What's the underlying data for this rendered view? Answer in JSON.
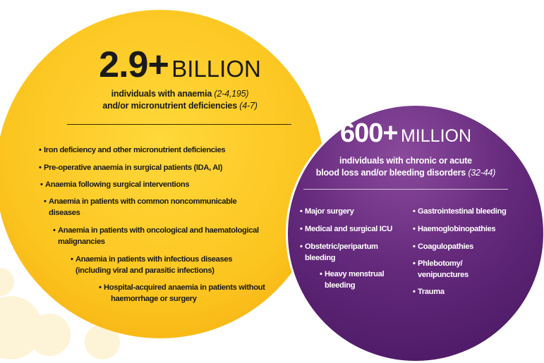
{
  "left": {
    "number": "2.9+",
    "unit": "BILLION",
    "description": [
      {
        "text": "individuals with anaemia",
        "citation": "(2-4,195)"
      },
      {
        "text": "and/or micronutrient deficiencies",
        "citation": "(4-7)"
      }
    ],
    "bullets": [
      {
        "lines": [
          "Iron deficiency and other micronutrient deficiencies"
        ]
      },
      {
        "lines": [
          "Pre-operative anaemia in surgical patients (IDA, AI)"
        ]
      },
      {
        "lines": [
          "Anaemia following surgical interventions"
        ]
      },
      {
        "lines": [
          "Anaemia in patients with common noncommunicable",
          "diseases"
        ]
      },
      {
        "lines": [
          "Anaemia in patients with oncological and haematological",
          "malignancies"
        ]
      },
      {
        "lines": [
          "Anaemia in patients with infectious diseases",
          "(including viral and parasitic infections)"
        ]
      },
      {
        "lines": [
          "Hospital-acquired anaemia in patients without",
          "haemorrhage or surgery"
        ]
      }
    ]
  },
  "right": {
    "number": "600+",
    "unit": "MILLION",
    "description": [
      {
        "text": "individuals with chronic or acute",
        "citation": null
      },
      {
        "text": "blood loss and/or bleeding disorders",
        "citation": "(32-44)"
      }
    ],
    "bullets_left": [
      {
        "lines": [
          "Major surgery"
        ]
      },
      {
        "lines": [
          "Medical and surgical ICU"
        ]
      },
      {
        "lines": [
          "Obstetric/peripartum",
          "bleeding"
        ]
      },
      {
        "lines": [
          "Heavy menstrual",
          "bleeding"
        ]
      }
    ],
    "bullets_right": [
      {
        "lines": [
          "Gastrointestinal bleeding"
        ]
      },
      {
        "lines": [
          "Haemoglobinopathies"
        ]
      },
      {
        "lines": [
          "Coagulopathies"
        ]
      },
      {
        "lines": [
          "Phlebotomy/",
          "venipunctures"
        ]
      },
      {
        "lines": [
          "Trauma"
        ]
      }
    ]
  }
}
